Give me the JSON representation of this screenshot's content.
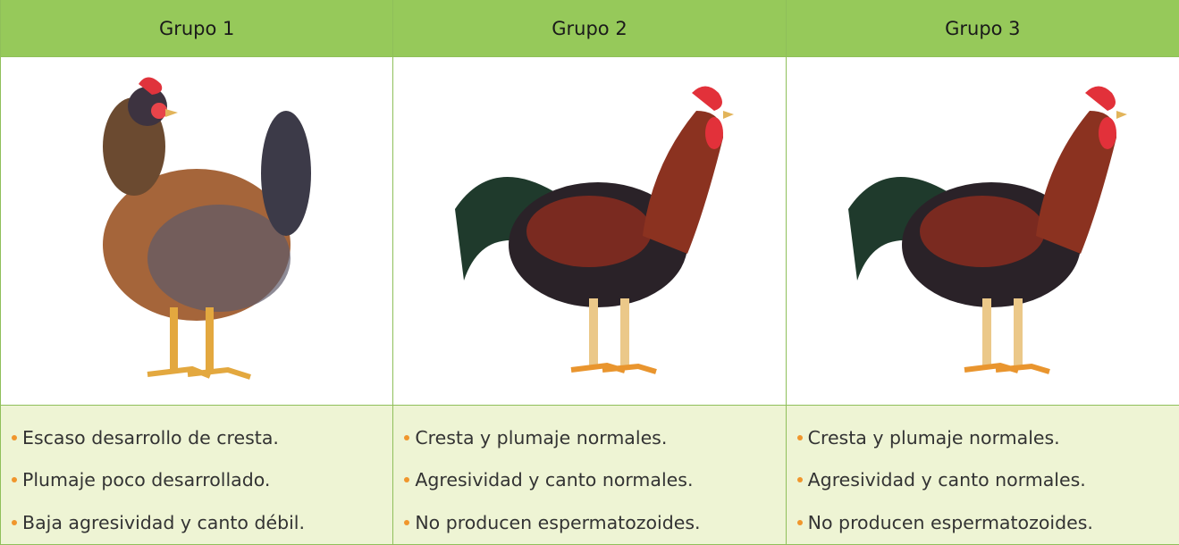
{
  "table": {
    "columns": [
      {
        "header": "Grupo 1",
        "bullets": [
          "Escaso desarrollo de cresta.",
          "Plumaje poco desarrollado.",
          "Baja agresividad y canto débil."
        ]
      },
      {
        "header": "Grupo 2",
        "bullets": [
          "Cresta y plumaje normales.",
          "Agresividad y canto normales.",
          "No producen espermatozoides."
        ]
      },
      {
        "header": "Grupo 3",
        "bullets": [
          "Cresta y plumaje normales.",
          "Agresividad y canto normales.",
          "No producen espermatozoides."
        ]
      }
    ]
  }
}
